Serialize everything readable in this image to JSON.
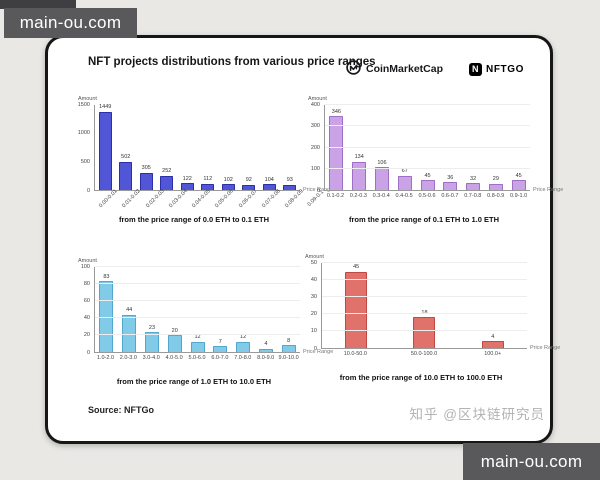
{
  "watermark": {
    "text": "main-ou.com"
  },
  "card": {
    "title": "NFT projects distributions from various price ranges",
    "logo_cmc": "CoinMarketCap",
    "logo_nftgo": "NFTGO",
    "nftgo_icon_letter": "N",
    "source": "Source: NFTGo",
    "credit": "知乎 @区块链研究员"
  },
  "chart_data": [
    {
      "type": "bar",
      "title": "from the price range of 0.0 ETH to 0.1 ETH",
      "ylabel": "Amount",
      "xlabel": "Price Range",
      "categories": [
        "0.00-0.01",
        "0.01-0.02",
        "0.02-0.03",
        "0.03-0.04",
        "0.04-0.05",
        "0.05-0.06",
        "0.06-0.07",
        "0.07-0.08",
        "0.08-0.09",
        "0.09-0.1"
      ],
      "values": [
        1449,
        502,
        305,
        252,
        122,
        112,
        102,
        92,
        104,
        93
      ],
      "ylim": [
        0,
        1500
      ],
      "yticks": [
        0,
        500,
        1000,
        1500
      ],
      "grid": false,
      "rotated_labels": true,
      "bar_color": "#5056d6",
      "bar_border": "#2b30a8"
    },
    {
      "type": "bar",
      "title": "from the price range of 0.1 ETH to 1.0 ETH",
      "ylabel": "Amount",
      "xlabel": "Price Range",
      "categories": [
        "0.1-0.2",
        "0.2-0.3",
        "0.3-0.4",
        "0.4-0.5",
        "0.5-0.6",
        "0.6-0.7",
        "0.7-0.8",
        "0.8-0.9",
        "0.9-1.0"
      ],
      "values": [
        346,
        134,
        106,
        67,
        45,
        36,
        32,
        29,
        45
      ],
      "ylim": [
        0,
        400
      ],
      "yticks": [
        0,
        100,
        200,
        300,
        400
      ],
      "grid": true,
      "rotated_labels": false,
      "bar_color": "#c9a3e6",
      "bar_border": "#9e6fc4"
    },
    {
      "type": "bar",
      "title": "from the price range of 1.0 ETH to 10.0 ETH",
      "ylabel": "Amount",
      "xlabel": "Price Range",
      "categories": [
        "1.0-2.0",
        "2.0-3.0",
        "3.0-4.0",
        "4.0-5.0",
        "5.0-6.0",
        "6.0-7.0",
        "7.0-8.0",
        "8.0-9.0",
        "9.0-10.0"
      ],
      "values": [
        83,
        44,
        23,
        20,
        12,
        7,
        12,
        4,
        8
      ],
      "ylim": [
        0,
        100
      ],
      "yticks": [
        0,
        20,
        40,
        60,
        80,
        100
      ],
      "grid": true,
      "rotated_labels": false,
      "bar_color": "#82cbe8",
      "bar_border": "#51a8cc"
    },
    {
      "type": "bar",
      "title": "from the price range of 10.0 ETH to 100.0 ETH",
      "ylabel": "Amount",
      "xlabel": "Price Range",
      "categories": [
        "10.0-50.0",
        "50.0-100.0",
        "100.0+"
      ],
      "values": [
        45,
        18,
        4
      ],
      "ylim": [
        0,
        50
      ],
      "yticks": [
        0,
        10,
        20,
        30,
        40,
        50
      ],
      "grid": true,
      "rotated_labels": false,
      "bar_color": "#e0726b",
      "bar_border": "#c04a42"
    }
  ]
}
